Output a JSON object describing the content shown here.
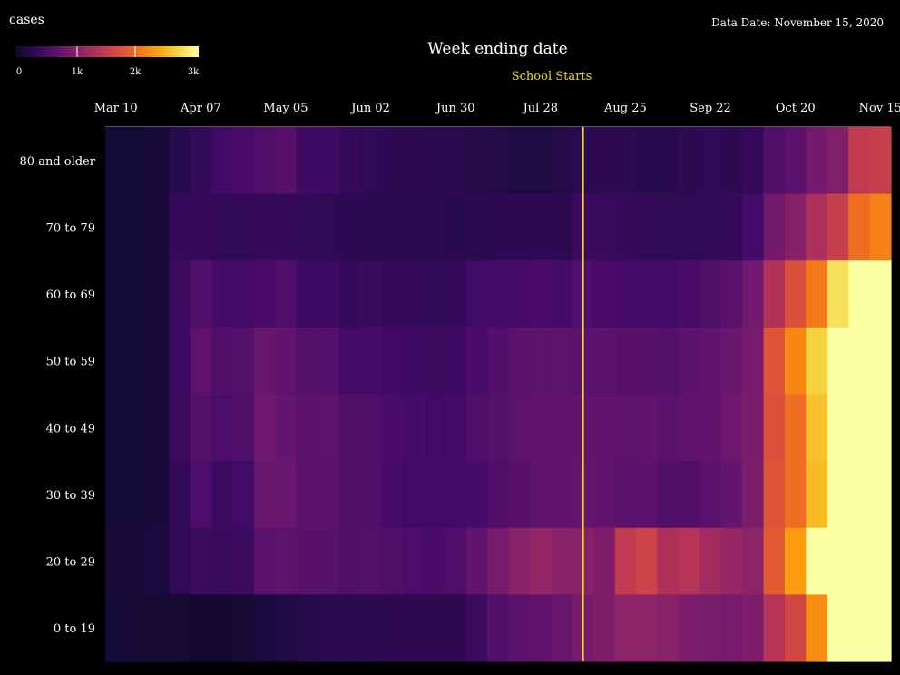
{
  "header": {
    "legend_title": "cases",
    "data_date": "Data Date: November 15, 2020",
    "x_title": "Week ending date",
    "annotation": "School Starts"
  },
  "colors": {
    "background": "#000000",
    "annotation_line": "#f2d33a",
    "colormap": "inferno"
  },
  "chart_data": {
    "type": "heatmap",
    "title": "",
    "xlabel": "Week ending date",
    "ylabel": "",
    "colorbar": {
      "label": "cases",
      "ticks": [
        "0",
        "1k",
        "2k",
        "3k"
      ],
      "range": [
        0,
        3000
      ]
    },
    "x_tick_labels": [
      "Mar 10",
      "Apr 07",
      "May 05",
      "Jun 02",
      "Jun 30",
      "Jul 28",
      "Aug 25",
      "Sep 22",
      "Oct 20",
      "Nov 15"
    ],
    "x_tick_weeks": [
      0,
      4,
      8,
      12,
      16,
      20,
      24,
      28,
      32,
      36
    ],
    "y_categories": [
      "80 and older",
      "70 to 79",
      "60 to 69",
      "50 to 59",
      "40 to 49",
      "30 to 39",
      "20 to 29",
      "0 to 19"
    ],
    "weeks": 37,
    "annotation": {
      "label": "School Starts",
      "week": 22.5
    },
    "values": [
      [
        120,
        120,
        140,
        260,
        340,
        440,
        500,
        560,
        620,
        420,
        420,
        360,
        320,
        300,
        300,
        280,
        280,
        240,
        220,
        180,
        180,
        220,
        280,
        300,
        300,
        260,
        260,
        300,
        320,
        300,
        360,
        560,
        640,
        840,
        940,
        1450,
        1500
      ],
      [
        120,
        120,
        140,
        360,
        360,
        340,
        340,
        360,
        360,
        340,
        320,
        300,
        280,
        300,
        280,
        280,
        260,
        280,
        300,
        300,
        300,
        300,
        380,
        380,
        360,
        340,
        320,
        320,
        340,
        360,
        460,
        820,
        980,
        1280,
        1500,
        1950,
        2100
      ],
      [
        120,
        120,
        140,
        400,
        540,
        480,
        480,
        500,
        540,
        420,
        420,
        360,
        380,
        360,
        360,
        340,
        360,
        440,
        480,
        480,
        500,
        480,
        540,
        500,
        480,
        480,
        480,
        500,
        560,
        640,
        820,
        1320,
        1700,
        2050,
        2750,
        3000,
        3000
      ],
      [
        120,
        120,
        140,
        420,
        660,
        560,
        600,
        740,
        680,
        600,
        600,
        460,
        480,
        440,
        420,
        400,
        420,
        500,
        580,
        640,
        660,
        660,
        640,
        640,
        620,
        620,
        600,
        640,
        680,
        760,
        860,
        1750,
        2150,
        2650,
        3000,
        3000,
        3000
      ],
      [
        120,
        120,
        140,
        400,
        600,
        520,
        560,
        800,
        720,
        640,
        660,
        560,
        560,
        500,
        480,
        440,
        460,
        540,
        600,
        660,
        700,
        680,
        700,
        700,
        660,
        680,
        640,
        680,
        700,
        800,
        880,
        1700,
        1950,
        2550,
        3000,
        3000,
        3000
      ],
      [
        120,
        120,
        140,
        340,
        520,
        400,
        440,
        760,
        760,
        640,
        640,
        560,
        560,
        480,
        440,
        440,
        440,
        460,
        540,
        620,
        680,
        700,
        720,
        700,
        640,
        640,
        560,
        560,
        640,
        720,
        900,
        1750,
        1950,
        2500,
        3000,
        3000,
        3000
      ],
      [
        140,
        140,
        160,
        320,
        400,
        380,
        400,
        640,
        660,
        620,
        620,
        560,
        600,
        560,
        520,
        500,
        560,
        700,
        860,
        1000,
        1080,
        1000,
        1000,
        920,
        1450,
        1550,
        1300,
        1350,
        1200,
        1100,
        1050,
        1800,
        2300,
        3000,
        3000,
        3000,
        3000
      ],
      [
        120,
        100,
        100,
        100,
        80,
        80,
        100,
        160,
        200,
        260,
        280,
        280,
        280,
        300,
        300,
        300,
        300,
        400,
        580,
        640,
        700,
        760,
        860,
        920,
        1050,
        1050,
        1000,
        900,
        880,
        860,
        920,
        1350,
        1600,
        2200,
        3000,
        3000,
        3000
      ]
    ]
  }
}
